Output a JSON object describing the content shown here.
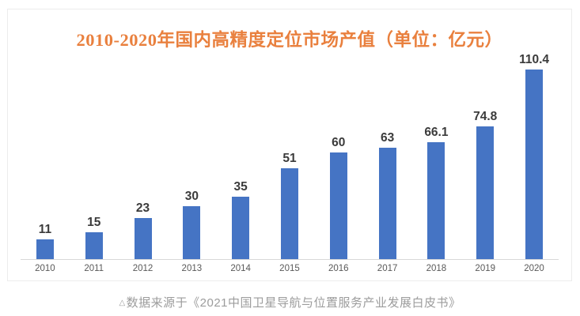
{
  "chart": {
    "title": "2010-2020年国内高精度定位市场产值（单位：亿元）",
    "caption_marker": "△",
    "caption": "数据来源于《2021中国卫星导航与位置服务产业发展白皮书》"
  },
  "chart_data": {
    "type": "bar",
    "title": "2010-2020年国内高精度定位市场产值（单位：亿元）",
    "categories": [
      "2010",
      "2011",
      "2012",
      "2013",
      "2014",
      "2015",
      "2016",
      "2017",
      "2018",
      "2019",
      "2020"
    ],
    "values": [
      11,
      15,
      23,
      30,
      35,
      51,
      60,
      63,
      66.1,
      74.8,
      110.4
    ],
    "value_labels": [
      "11",
      "15",
      "23",
      "30",
      "35",
      "51",
      "60",
      "63",
      "66.1",
      "74.8",
      "110.4"
    ],
    "unit": "亿元",
    "xlabel": "",
    "ylabel": "",
    "ylim": [
      0,
      110.4
    ],
    "grid": false,
    "legend_position": "none",
    "data_labels": "above-bars",
    "source_note": "数据来源于《2021中国卫星导航与位置服务产业发展白皮书》",
    "colors": {
      "bar": "#4574C4",
      "title": "#E9803E",
      "axis_line": "#D8D8D8",
      "value_label": "#3B3B3B",
      "tick_label": "#595959",
      "caption": "#9C9C9C",
      "frame_border": "#ECECEC"
    }
  }
}
